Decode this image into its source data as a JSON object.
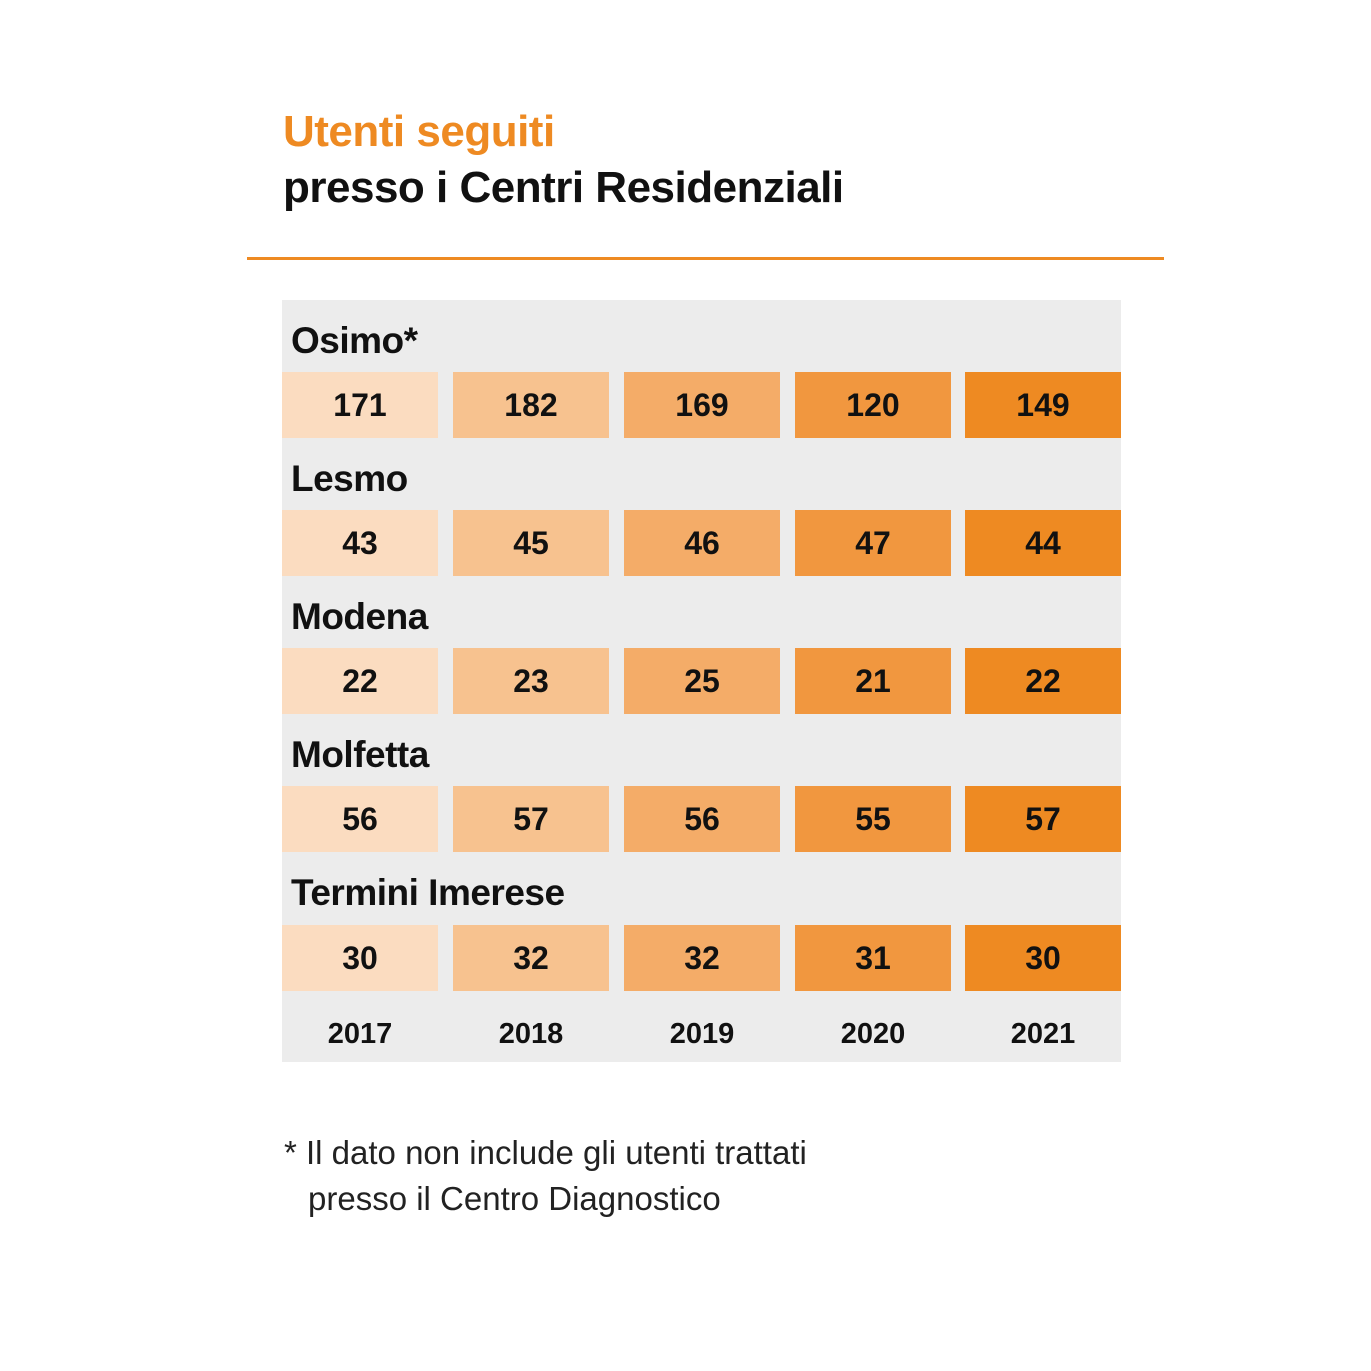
{
  "title_line1": "Utenti seguiti",
  "title_line2": "presso i Centri Residenziali",
  "footnote": {
    "line1": "* Il dato non include gli utenti trattati",
    "line2": "presso il Centro Diagnostico"
  },
  "colors": {
    "accent": "#ee8a22",
    "table_background": "#ececec",
    "year_fills": [
      "#fbdcc0",
      "#f7c28f",
      "#f4ac68",
      "#f1973f",
      "#ee8a22"
    ]
  },
  "chart_data": {
    "type": "table",
    "title": "Utenti seguiti presso i Centri Residenziali",
    "years": [
      "2017",
      "2018",
      "2019",
      "2020",
      "2021"
    ],
    "rows": [
      {
        "site": "Osimo*",
        "values": [
          171,
          182,
          169,
          120,
          149
        ]
      },
      {
        "site": "Lesmo",
        "values": [
          43,
          45,
          46,
          47,
          44
        ]
      },
      {
        "site": "Modena",
        "values": [
          22,
          23,
          25,
          21,
          22
        ]
      },
      {
        "site": "Molfetta",
        "values": [
          56,
          57,
          56,
          55,
          57
        ]
      },
      {
        "site": "Termini Imerese",
        "values": [
          30,
          32,
          32,
          31,
          30
        ]
      }
    ]
  }
}
